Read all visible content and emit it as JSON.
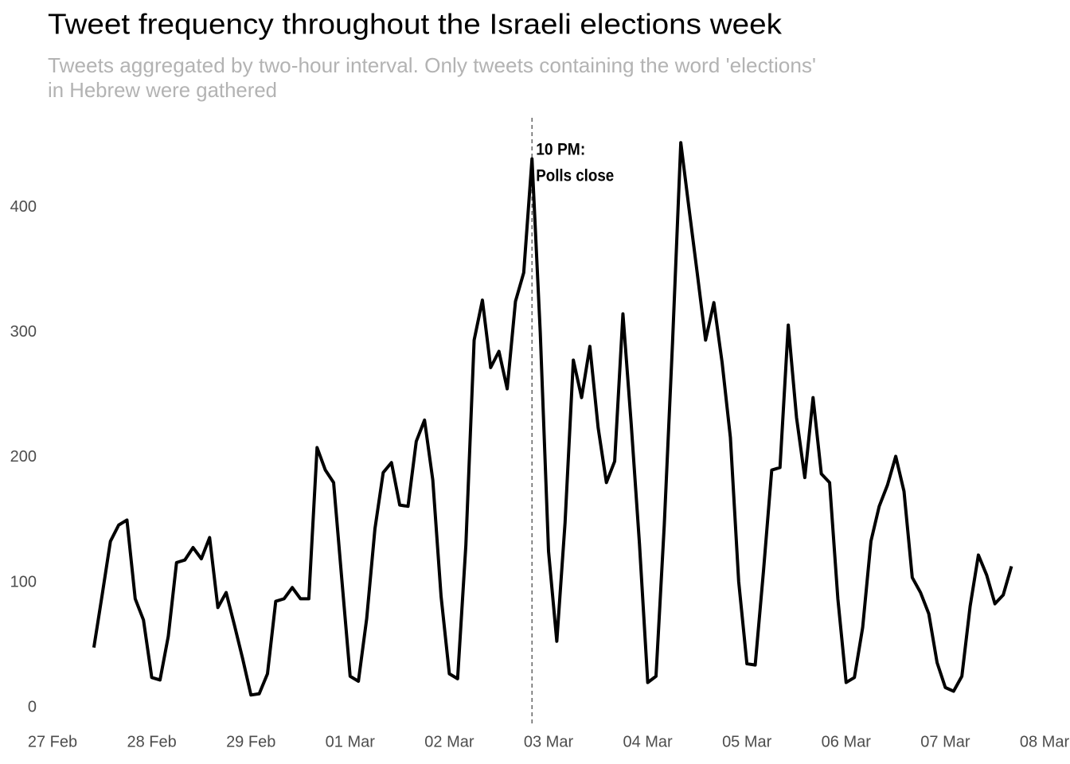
{
  "chart_data": {
    "type": "line",
    "title": "Tweet frequency throughout the Israeli elections week",
    "subtitle": [
      "Tweets aggregated by two-hour interval. Only tweets containing the word 'elections'",
      "in Hebrew were gathered"
    ],
    "x": [
      10,
      12,
      14,
      16,
      18,
      20,
      22,
      24,
      26,
      28,
      30,
      32,
      34,
      36,
      38,
      40,
      42,
      44,
      46,
      48,
      50,
      52,
      54,
      56,
      58,
      60,
      62,
      64,
      66,
      68,
      70,
      72,
      74,
      76,
      78,
      80,
      82,
      84,
      86,
      88,
      90,
      92,
      94,
      96,
      98,
      100,
      102,
      104,
      106,
      108,
      110,
      112,
      114,
      116,
      118,
      120,
      122,
      124,
      126,
      128,
      130,
      132,
      134,
      136,
      138,
      140,
      142,
      144,
      146,
      148,
      150,
      152,
      154,
      156,
      158,
      160,
      162,
      164,
      166,
      168,
      170,
      172,
      174,
      176,
      178,
      180,
      182,
      184,
      186,
      188,
      190,
      192,
      194,
      196,
      198,
      200,
      202,
      204,
      206,
      208,
      210,
      212,
      214,
      216,
      218,
      220,
      222,
      224,
      226,
      228,
      230,
      232
    ],
    "series": [
      {
        "name": "Tweets",
        "color": "#000000",
        "values": [
          48,
          90,
          133,
          146,
          150,
          87,
          70,
          24,
          22,
          57,
          116,
          118,
          128,
          119,
          136,
          80,
          92,
          66,
          39,
          10,
          11,
          27,
          85,
          87,
          96,
          87,
          87,
          208,
          190,
          180,
          102,
          25,
          21,
          71,
          143,
          188,
          196,
          162,
          161,
          213,
          230,
          182,
          89,
          27,
          23,
          130,
          294,
          326,
          272,
          285,
          255,
          325,
          348,
          439,
          300,
          125,
          53,
          148,
          278,
          248,
          289,
          224,
          180,
          197,
          315,
          227,
          131,
          20,
          25,
          146,
          292,
          452,
          399,
          347,
          294,
          324,
          276,
          216,
          101,
          35,
          34,
          109,
          190,
          192,
          306,
          232,
          184,
          248,
          187,
          180,
          87,
          20,
          24,
          64,
          133,
          161,
          178,
          201,
          173,
          104,
          92,
          75,
          36,
          16,
          13,
          25,
          81,
          122,
          106,
          83,
          90,
          113
        ]
      }
    ],
    "xlim": [
      0,
      240
    ],
    "xticks": [
      {
        "value": 0,
        "label": "27 Feb"
      },
      {
        "value": 24,
        "label": "28 Feb"
      },
      {
        "value": 48,
        "label": "29 Feb"
      },
      {
        "value": 72,
        "label": "01 Mar"
      },
      {
        "value": 96,
        "label": "02 Mar"
      },
      {
        "value": 120,
        "label": "03 Mar"
      },
      {
        "value": 144,
        "label": "04 Mar"
      },
      {
        "value": 168,
        "label": "05 Mar"
      },
      {
        "value": 192,
        "label": "06 Mar"
      },
      {
        "value": 216,
        "label": "07 Mar"
      },
      {
        "value": 240,
        "label": "08 Mar"
      }
    ],
    "ylim": [
      0,
      470
    ],
    "yticks": [
      0,
      100,
      200,
      300,
      400
    ],
    "grid": false,
    "annotation": {
      "x": 116,
      "lines": [
        "10 PM:",
        "Polls close"
      ]
    }
  }
}
